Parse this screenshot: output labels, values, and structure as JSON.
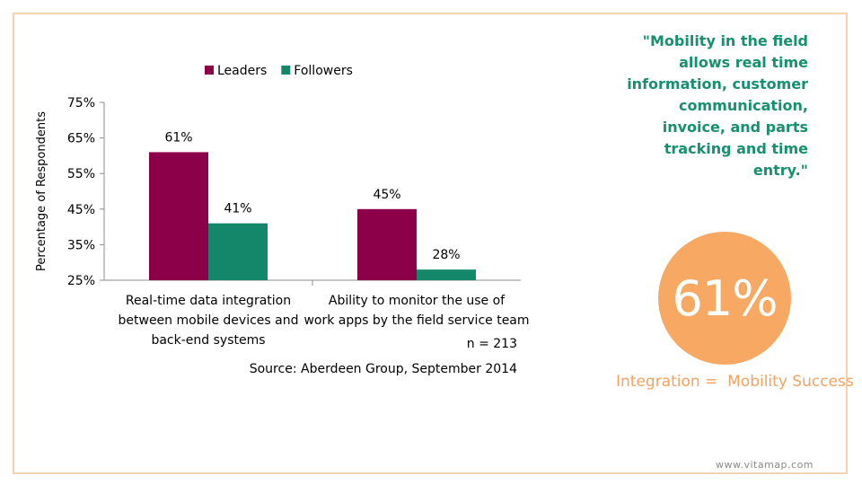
{
  "chart_data": {
    "type": "bar",
    "categories": [
      [
        "Real-time data integration",
        "between mobile devices and",
        "back-end systems"
      ],
      [
        "Ability to monitor the use of",
        "work apps by the field service team"
      ]
    ],
    "series": [
      {
        "name": "Leaders",
        "values": [
          61,
          45
        ],
        "color": "#8b0048"
      },
      {
        "name": "Followers",
        "values": [
          41,
          28
        ],
        "color": "#14876a"
      }
    ],
    "value_labels": [
      [
        "61%",
        "45%"
      ],
      [
        "41%",
        "28%"
      ]
    ],
    "ylabel": "Percentage of Respondents",
    "ylim": [
      25,
      75
    ],
    "yticks": [
      25,
      35,
      45,
      55,
      65,
      75
    ],
    "ytick_labels": [
      "25%",
      "35%",
      "45%",
      "55%",
      "65%",
      "75%"
    ],
    "legend_placement": "top",
    "grid": false,
    "n_note": "n = 213",
    "source": "Source: Aberdeen Group, September 2014"
  },
  "quote": {
    "lines": [
      "\"Mobility in the field",
      "allows real time",
      "information, customer",
      "communication,",
      "invoice, and parts",
      "tracking and time",
      "entry.\""
    ]
  },
  "stat": {
    "value": "61%",
    "caption": "Integration =  Mobility Success",
    "color": "#f7a963"
  },
  "footer": {
    "url": "www.vitamap.com"
  }
}
